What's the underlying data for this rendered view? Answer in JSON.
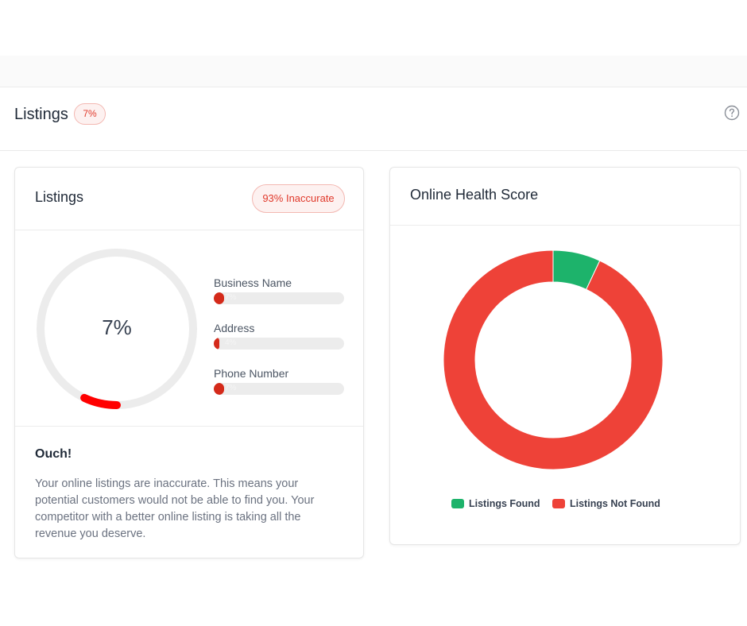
{
  "section": {
    "title": "Listings",
    "badge": "7%",
    "help_icon": "question-circle-icon"
  },
  "listings_card": {
    "title": "Listings",
    "badge": "93% Inaccurate",
    "gauge": {
      "value_label": "7%",
      "percent": 7,
      "color": "#ff0000"
    },
    "metrics": [
      {
        "label": "Business Name",
        "value_text": "7%",
        "percent": 7
      },
      {
        "label": "Address",
        "value_text": "4%",
        "percent": 4
      },
      {
        "label": "Phone Number",
        "value_text": "7%",
        "percent": 7
      }
    ],
    "ouch_title": "Ouch!",
    "ouch_text": "Your online listings are inaccurate. This means your potential customers would not be able to find you. Your competitor with a better online listing is taking all the revenue you deserve."
  },
  "health_card": {
    "title": "Online Health Score"
  },
  "chart_data": {
    "type": "pie",
    "title": "Online Health Score",
    "categories": [
      "Listings Found",
      "Listings Not Found"
    ],
    "values": [
      7,
      93
    ],
    "colors": [
      "#1db36b",
      "#ee4238"
    ],
    "legend_position": "bottom"
  }
}
